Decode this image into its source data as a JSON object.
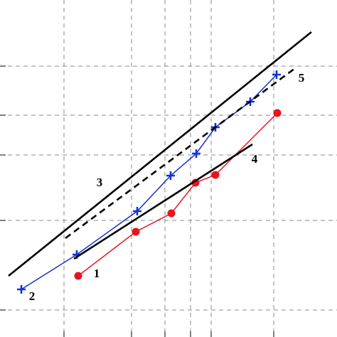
{
  "chart_data": {
    "type": "line",
    "xlim": [
      0,
      474
    ],
    "ylim": [
      0,
      474
    ],
    "xticks": [
      90,
      185,
      232,
      268,
      297,
      385
    ],
    "yticks": [
      38,
      164,
      256,
      312,
      381
    ],
    "grid": true,
    "series": [
      {
        "name": "1",
        "color": "#e8141e",
        "marker": "circle",
        "dashed": false,
        "x": [
          110,
          191,
          241,
          275,
          303,
          390
        ],
        "values": [
          86,
          148,
          174,
          217,
          228,
          315
        ]
      },
      {
        "name": "2",
        "color": "#1432d2",
        "marker": "plus",
        "dashed": false,
        "x": [
          30,
          108,
          193,
          240,
          276,
          303,
          352,
          389
        ],
        "values": [
          67,
          116,
          177,
          227,
          258,
          295,
          331,
          369
        ]
      },
      {
        "name": "3",
        "color": "#000000",
        "marker": "none",
        "dashed": false,
        "x": [
          12,
          438
        ],
        "values": [
          86,
          429
        ]
      },
      {
        "name": "4",
        "color": "#000000",
        "marker": "none",
        "dashed": false,
        "x": [
          104,
          355
        ],
        "values": [
          110,
          271
        ]
      },
      {
        "name": "5",
        "color": "#000000",
        "marker": "none",
        "dashed": true,
        "x": [
          92,
          415
        ],
        "values": [
          139,
          378
        ]
      }
    ]
  }
}
